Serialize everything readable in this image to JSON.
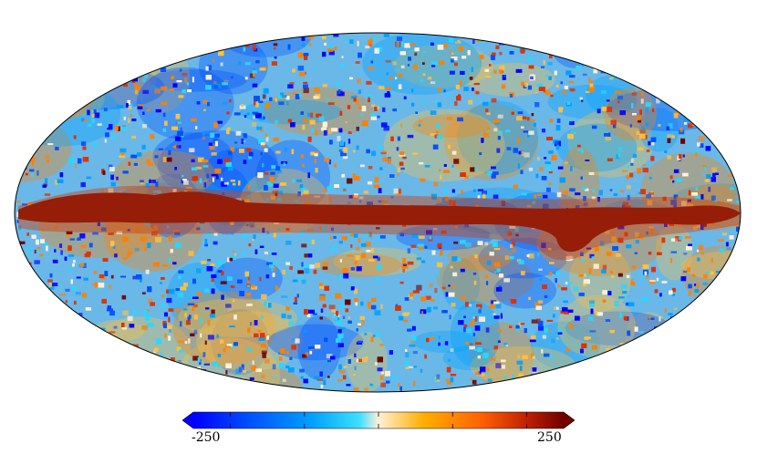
{
  "map": {
    "projection": "mollweide",
    "colormap": [
      "#0000ff",
      "#0050ff",
      "#00a0ff",
      "#28d8ff",
      "#fff0d8",
      "#ffc040",
      "#ff8000",
      "#e03000",
      "#700000"
    ],
    "background": "#ffffff"
  },
  "colorbar": {
    "min_label": "-250",
    "max_label": "250",
    "min": -250,
    "max": 250,
    "ticks": [
      -200,
      -100,
      0,
      100,
      200
    ],
    "extend": "both"
  }
}
